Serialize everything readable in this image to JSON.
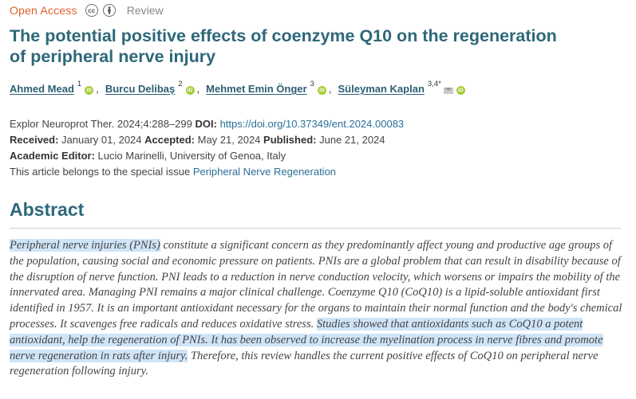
{
  "header": {
    "access_label": "Open Access",
    "license_icons": [
      "cc-icon",
      "by-icon"
    ],
    "article_type": "Review"
  },
  "title": "The potential positive effects of coenzyme Q10 on the regeneration of peripheral nerve injury",
  "authors": [
    {
      "name": "Ahmed Mead",
      "sup": "1"
    },
    {
      "name": "Burcu Delibaş",
      "sup": "2"
    },
    {
      "name": "Mehmet Emin Önger",
      "sup": "3"
    },
    {
      "name": "Süleyman Kaplan",
      "sup": "3,4*"
    }
  ],
  "citation": {
    "journal": "Explor Neuroprot Ther. 2024;4:288–299",
    "doi_label": "DOI:",
    "doi": "https://doi.org/10.37349/ent.2024.00083"
  },
  "dates": {
    "received_label": "Received:",
    "received": "January 01, 2024",
    "accepted_label": "Accepted:",
    "accepted": "May 21, 2024",
    "published_label": "Published:",
    "published": "June 21, 2024"
  },
  "editor": {
    "label": "Academic Editor:",
    "value": "Lucio Marinelli, University of Genoa, Italy"
  },
  "special_issue": {
    "text": "This article belongs to the special issue",
    "link": "Peripheral Nerve Regeneration"
  },
  "abstract": {
    "heading": "Abstract",
    "part1_highlight": "Peripheral nerve injuries (PNIs)",
    "part2": " constitute a significant concern as they predominantly affect young and productive age groups of the population, causing social and economic pressure on patients. PNIs are a global problem that can result in disability because of the disruption of nerve function. PNI leads to a reduction in nerve conduction velocity, which worsens or impairs the mobility of the innervated area. Managing PNI remains a major clinical challenge. Coenzyme Q10 (CoQ10) is a lipid-soluble antioxidant first identified in 1957. It is an important antioxidant necessary for the organs to maintain their normal function and the body's chemical processes. It scavenges free radicals and reduces oxidative stress. ",
    "part3_highlight": "Studies showed that antioxidants such as CoQ10 a potent antioxidant, help the regeneration of PNIs. It has been observed to increase the myelination process in nerve fibres and promote nerve regeneration in rats after injury.",
    "part4": " Therefore, this review handles the current positive effects of CoQ10 on peripheral nerve regeneration following injury."
  }
}
